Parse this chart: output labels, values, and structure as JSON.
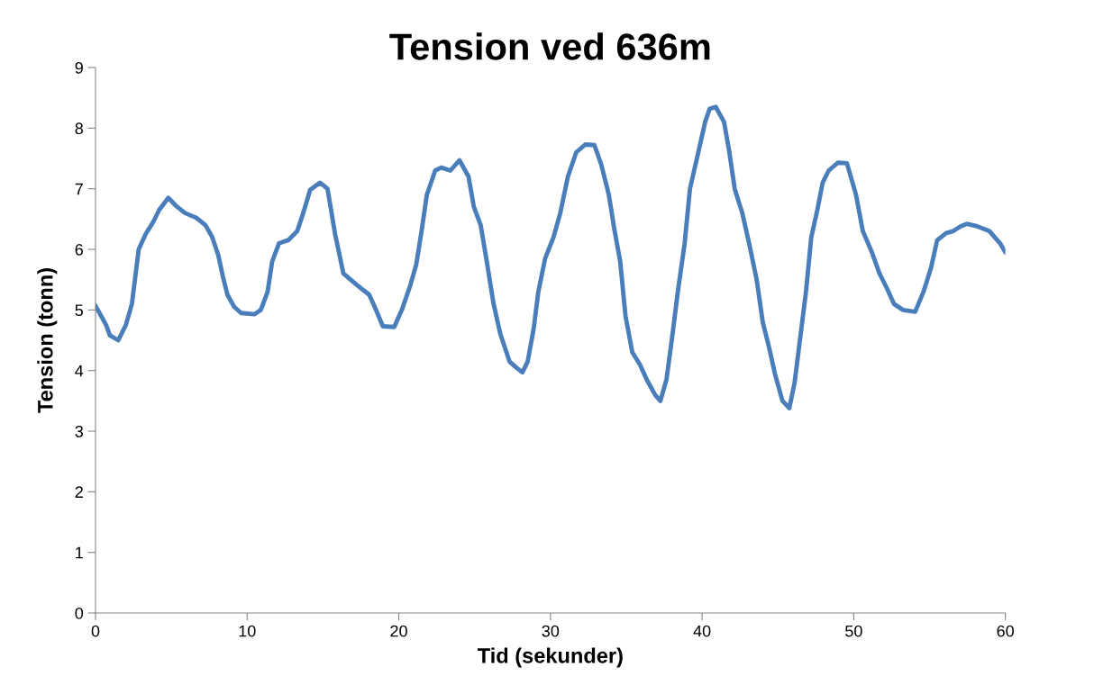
{
  "chart_data": {
    "type": "line",
    "title": "Tension ved 636m",
    "xlabel": "Tid (sekunder)",
    "ylabel": "Tension (tonn)",
    "xlim": [
      0,
      60
    ],
    "xticks": [
      0,
      10,
      20,
      30,
      40,
      50,
      60
    ],
    "ylim": [
      0,
      9
    ],
    "yticks": [
      0,
      1,
      2,
      3,
      4,
      5,
      6,
      7,
      8,
      9
    ],
    "grid": false,
    "legend": false,
    "marker": "none",
    "line_style": "solid",
    "series": [
      {
        "color": "#4a7ebb",
        "x": [
          0,
          0.7,
          0.95,
          1.5,
          2.0,
          2.4,
          2.6,
          2.85,
          3.3,
          3.8,
          4.2,
          4.8,
          5.3,
          5.9,
          6.65,
          7.25,
          7.7,
          8.1,
          8.4,
          8.7,
          9.15,
          9.6,
          10.5,
          10.9,
          11.35,
          11.65,
          12.1,
          12.7,
          13.3,
          13.7,
          14.15,
          14.8,
          15.3,
          15.5,
          15.8,
          16.35,
          17.2,
          18.05,
          18.5,
          18.95,
          19.7,
          20.2,
          20.75,
          21.15,
          21.5,
          21.85,
          22.4,
          22.8,
          23.4,
          24.0,
          24.6,
          24.95,
          25.4,
          25.8,
          26.25,
          26.7,
          27.3,
          27.75,
          28.15,
          28.5,
          28.9,
          29.2,
          29.65,
          30.2,
          30.65,
          31.15,
          31.7,
          32.3,
          32.9,
          33.35,
          33.85,
          34.2,
          34.6,
          34.95,
          35.4,
          35.9,
          36.35,
          36.9,
          37.25,
          37.65,
          38.0,
          38.4,
          38.85,
          39.2,
          39.75,
          40.2,
          40.5,
          40.9,
          41.45,
          41.8,
          42.15,
          42.65,
          43.1,
          43.6,
          44.0,
          44.4,
          44.8,
          45.3,
          45.75,
          46.1,
          46.5,
          46.85,
          47.2,
          47.6,
          47.95,
          48.35,
          48.95,
          49.55,
          50.15,
          50.6,
          51.2,
          51.7,
          52.2,
          52.65,
          53.25,
          54.05,
          54.6,
          55.1,
          55.5,
          56.1,
          56.55,
          57.05,
          57.45,
          58.15,
          58.95,
          59.65,
          60
        ],
        "values": [
          5.07,
          4.75,
          4.58,
          4.5,
          4.75,
          5.1,
          5.5,
          6.0,
          6.25,
          6.45,
          6.65,
          6.85,
          6.72,
          6.6,
          6.52,
          6.4,
          6.2,
          5.9,
          5.55,
          5.25,
          5.05,
          4.95,
          4.93,
          5.0,
          5.3,
          5.8,
          6.1,
          6.15,
          6.3,
          6.6,
          6.98,
          7.1,
          7.0,
          6.7,
          6.25,
          5.6,
          5.42,
          5.25,
          5.0,
          4.73,
          4.72,
          5.0,
          5.4,
          5.75,
          6.3,
          6.9,
          7.3,
          7.35,
          7.3,
          7.47,
          7.2,
          6.7,
          6.4,
          5.8,
          5.1,
          4.6,
          4.15,
          4.05,
          3.97,
          4.15,
          4.7,
          5.3,
          5.85,
          6.2,
          6.6,
          7.2,
          7.6,
          7.73,
          7.72,
          7.4,
          6.9,
          6.35,
          5.8,
          4.9,
          4.3,
          4.1,
          3.85,
          3.6,
          3.5,
          3.85,
          4.5,
          5.3,
          6.1,
          7.0,
          7.6,
          8.1,
          8.32,
          8.35,
          8.1,
          7.6,
          7.0,
          6.6,
          6.1,
          5.5,
          4.8,
          4.4,
          3.95,
          3.5,
          3.38,
          3.8,
          4.6,
          5.3,
          6.2,
          6.65,
          7.1,
          7.3,
          7.43,
          7.42,
          6.9,
          6.3,
          5.95,
          5.6,
          5.35,
          5.1,
          5.0,
          4.97,
          5.3,
          5.7,
          6.15,
          6.27,
          6.3,
          6.38,
          6.42,
          6.38,
          6.3,
          6.1,
          5.95
        ]
      }
    ]
  }
}
